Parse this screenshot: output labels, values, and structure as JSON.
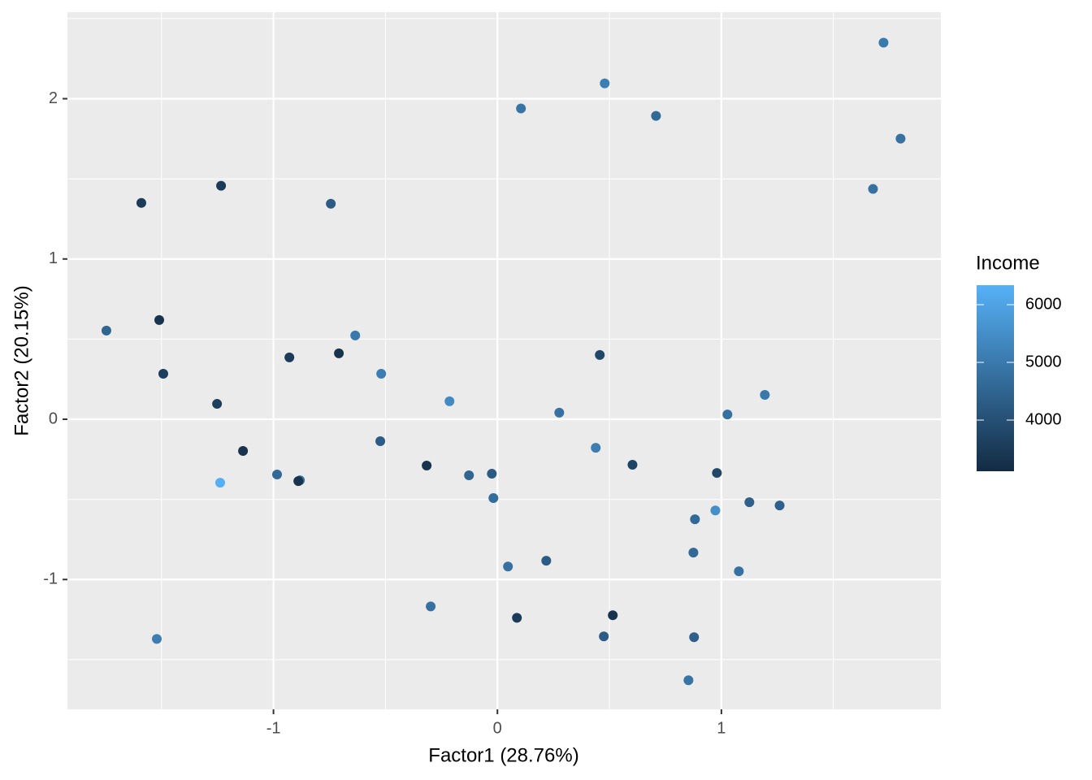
{
  "chart_data": {
    "type": "scatter",
    "x_label": "Factor1 (28.76%)",
    "y_label": "Factor2 (20.15%)",
    "xlim": [
      -1.92,
      1.98
    ],
    "ylim": [
      -1.81,
      2.54
    ],
    "xticks": [
      -1,
      0,
      1
    ],
    "yticks": [
      -1,
      0,
      1,
      2
    ],
    "grid": true,
    "x": [
      1.724,
      1.8,
      1.677,
      0.479,
      0.105,
      0.708,
      -1.59,
      -1.234,
      -0.744,
      -1.746,
      -1.51,
      -1.492,
      -1.252,
      -0.929,
      -0.708,
      -0.635,
      -0.519,
      -0.214,
      0.457,
      0.276,
      1.194,
      1.027,
      -1.136,
      -1.238,
      -0.984,
      -0.882,
      -0.889,
      -0.523,
      -0.316,
      -0.127,
      -0.025,
      -0.018,
      0.439,
      0.603,
      0.98,
      0.973,
      1.125,
      1.26,
      0.882,
      0.875,
      1.078,
      0.047,
      0.218,
      -0.298,
      0.087,
      0.515,
      0.475,
      0.878,
      -1.521,
      0.853
    ],
    "values": [
      2.35,
      1.751,
      1.437,
      2.096,
      1.939,
      1.893,
      1.35,
      1.457,
      1.345,
      0.553,
      0.619,
      0.284,
      0.096,
      0.386,
      0.411,
      0.523,
      0.284,
      0.112,
      0.401,
      0.041,
      0.152,
      0.03,
      -0.198,
      -0.396,
      -0.345,
      -0.381,
      -0.386,
      -0.137,
      -0.289,
      -0.35,
      -0.34,
      -0.492,
      -0.178,
      -0.284,
      -0.335,
      -0.569,
      -0.518,
      -0.538,
      -0.624,
      -0.832,
      -0.949,
      -0.919,
      -0.883,
      -1.168,
      -1.239,
      -1.223,
      -1.355,
      -1.36,
      -1.371,
      -1.629
    ],
    "income": [
      5000,
      4800,
      4800,
      5100,
      4900,
      4600,
      3500,
      3500,
      4300,
      4500,
      3300,
      3600,
      3600,
      3500,
      3300,
      5000,
      5100,
      5400,
      3800,
      4800,
      5000,
      4800,
      3300,
      6300,
      4600,
      4800,
      3300,
      4300,
      3300,
      4500,
      4300,
      4700,
      5100,
      3700,
      3800,
      5500,
      4400,
      4400,
      4600,
      4600,
      4800,
      4800,
      4300,
      4800,
      3500,
      3300,
      4300,
      4400,
      5100,
      4900
    ],
    "color_scale": {
      "title": "Income",
      "low": "#132B43",
      "high": "#56B1F7",
      "lim": [
        3113,
        6338
      ],
      "ticks": [
        4000,
        5000,
        6000
      ]
    }
  }
}
